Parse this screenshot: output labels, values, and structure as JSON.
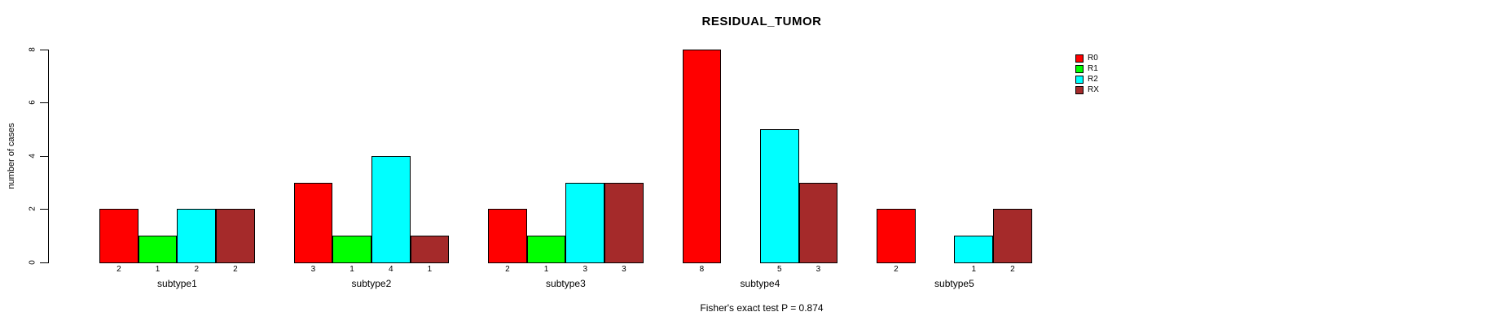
{
  "chart_data": {
    "type": "bar",
    "title": "RESIDUAL_TUMOR",
    "xlabel": "",
    "ylabel": "number of cases",
    "annotation": "Fisher's exact test P = 0.874",
    "categories": [
      "subtype1",
      "subtype2",
      "subtype3",
      "subtype4",
      "subtype5"
    ],
    "series": [
      {
        "name": "R0",
        "color": "#ff0000",
        "values": [
          2,
          3,
          2,
          8,
          2
        ]
      },
      {
        "name": "R1",
        "color": "#00ff00",
        "values": [
          1,
          1,
          1,
          0,
          0
        ]
      },
      {
        "name": "R2",
        "color": "#00ffff",
        "values": [
          2,
          4,
          3,
          5,
          1
        ]
      },
      {
        "name": "RX",
        "color": "#a52a2a",
        "values": [
          2,
          1,
          3,
          3,
          2
        ]
      }
    ],
    "ylim": [
      0,
      8
    ],
    "yticks": [
      0,
      2,
      4,
      6,
      8
    ],
    "bar_value_labels": true,
    "grid": false,
    "legend_position": "top-right",
    "axis_color": "#000000",
    "background_color": "#ffffff"
  }
}
